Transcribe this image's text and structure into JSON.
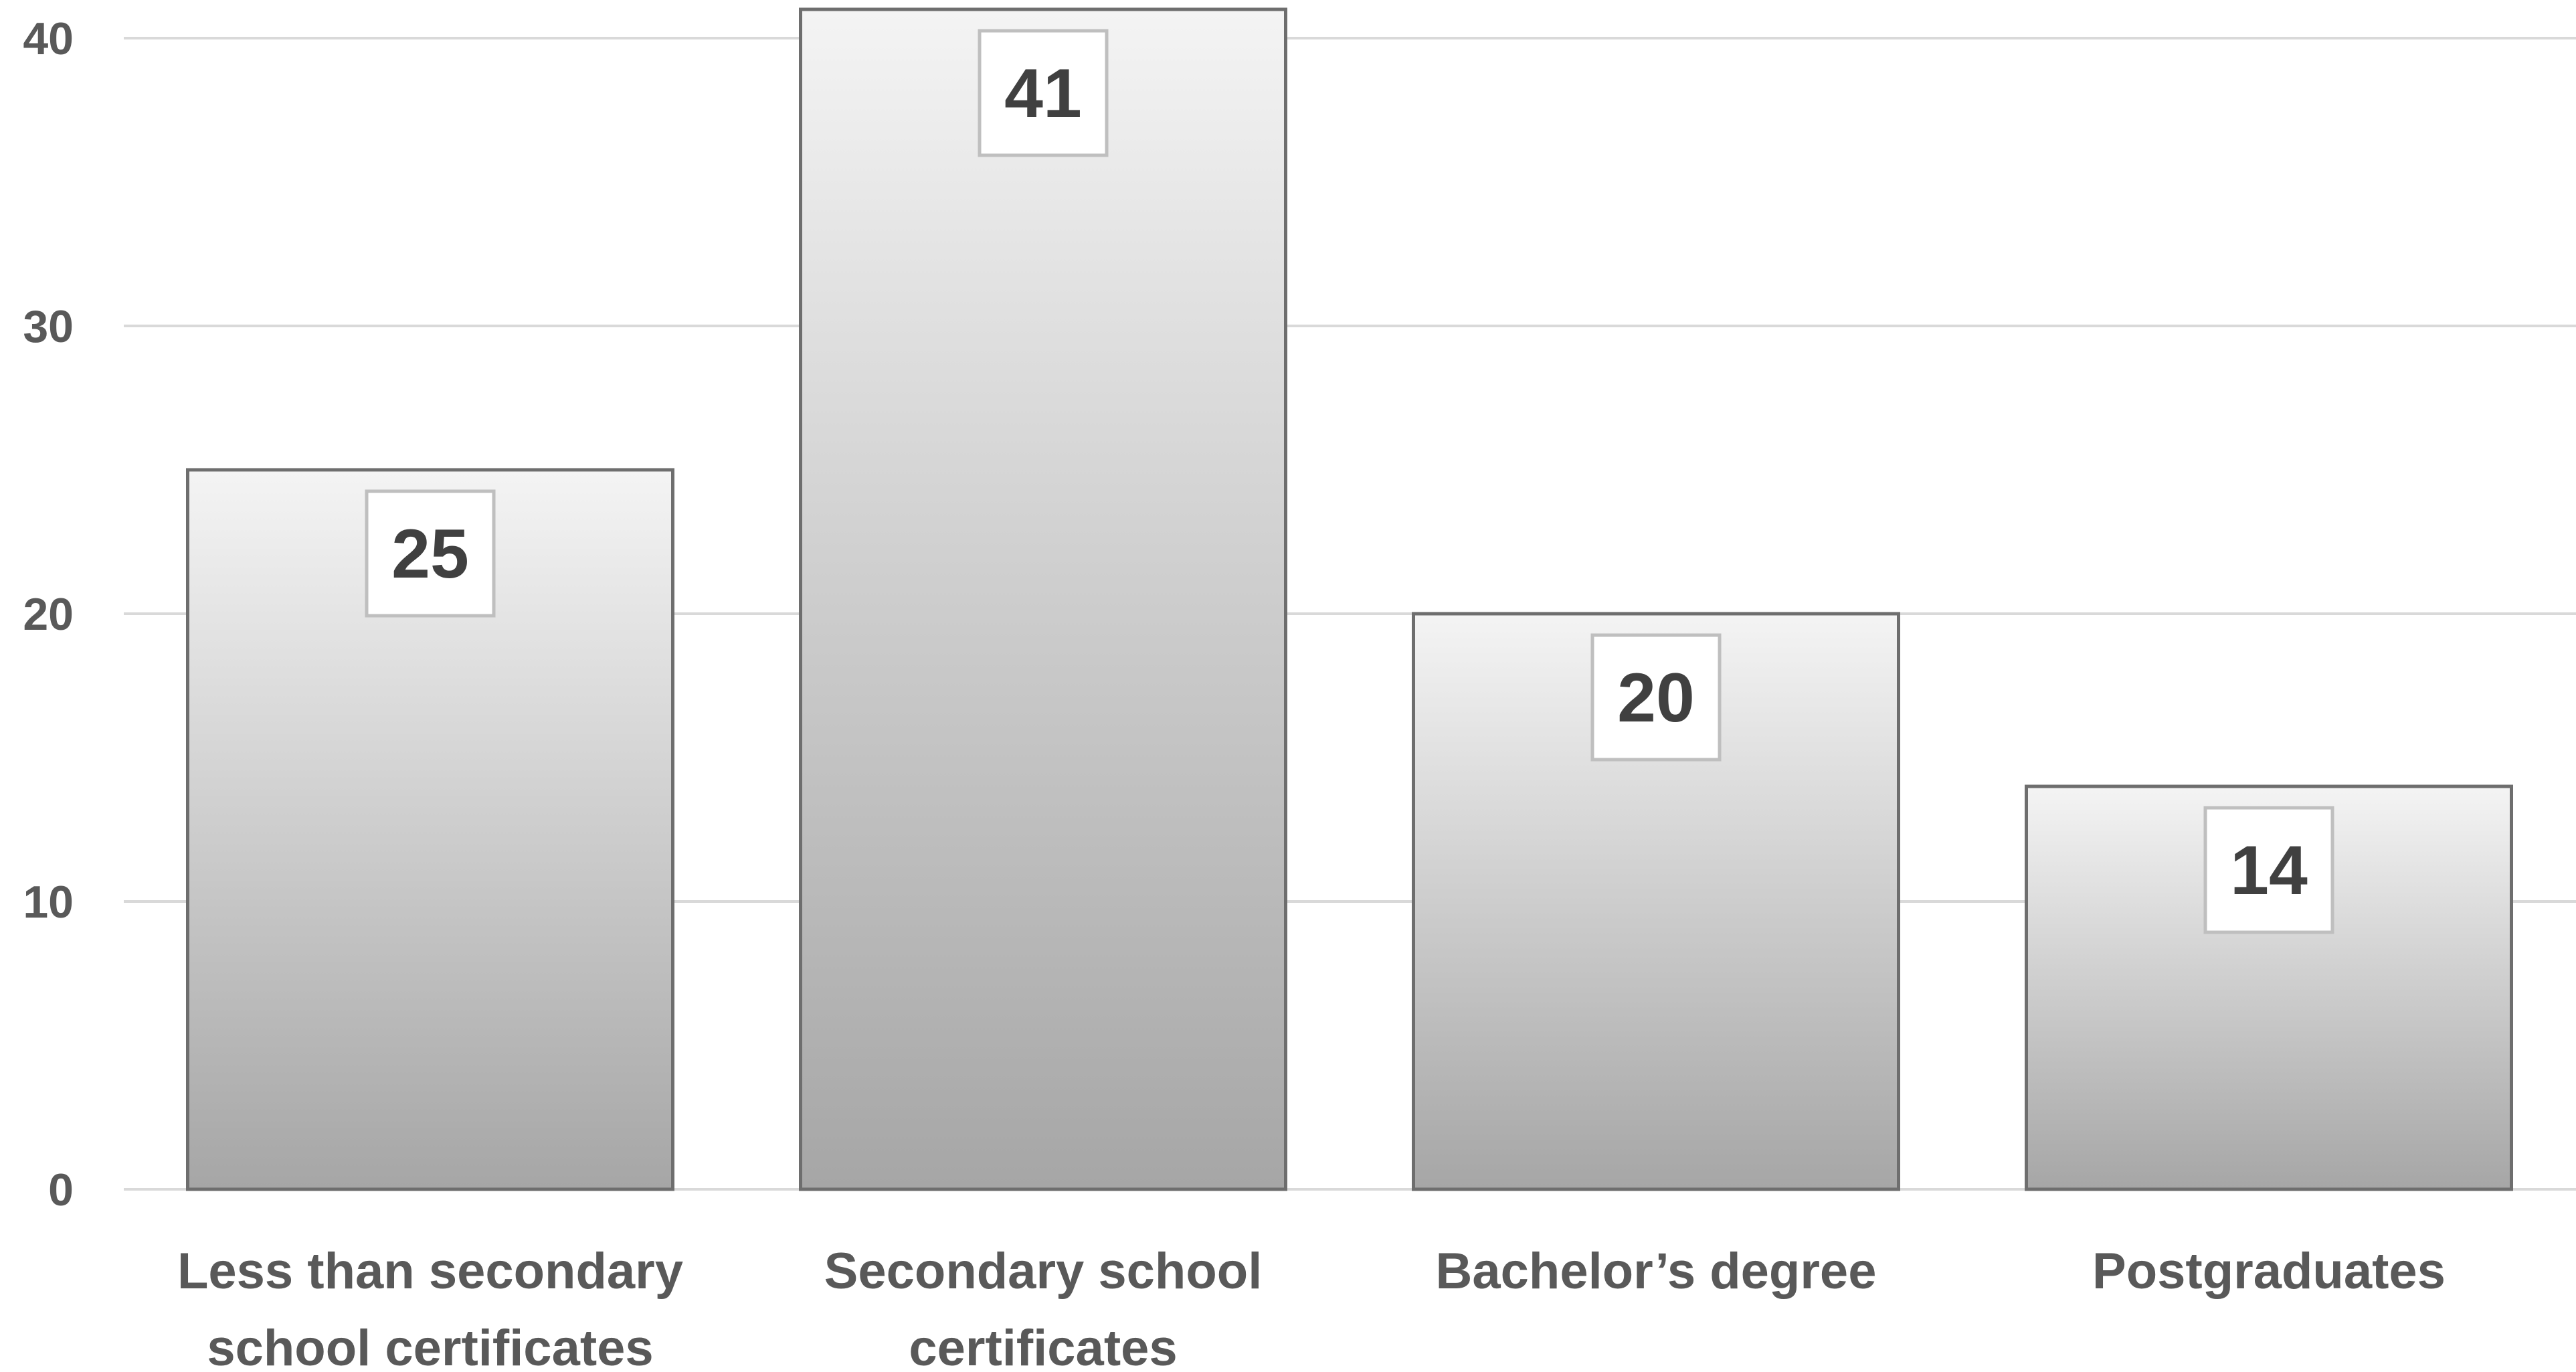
{
  "chart_data": {
    "type": "bar",
    "categories": [
      [
        "Less than secondary",
        "school certificates"
      ],
      [
        "Secondary school",
        "certificates"
      ],
      [
        "Bachelor’s degree"
      ],
      [
        "Postgraduates"
      ]
    ],
    "values": [
      25,
      41,
      20,
      14
    ],
    "data_labels": [
      "25",
      "41",
      "20",
      "14"
    ],
    "title": "",
    "xlabel": "",
    "ylabel": "",
    "ylim": [
      0,
      40
    ],
    "yticks": [
      0,
      10,
      20,
      30,
      40
    ],
    "ytick_labels": [
      "0",
      "10",
      "20",
      "30",
      "40"
    ],
    "grid": true,
    "legend": "none",
    "colors": {
      "bar_light": "#f4f4f4",
      "bar_dark": "#a6a6a6",
      "bar_stroke": "#6e6e6e",
      "grid": "#d9d9d9",
      "label_box_stroke": "#bfbfbf"
    }
  }
}
